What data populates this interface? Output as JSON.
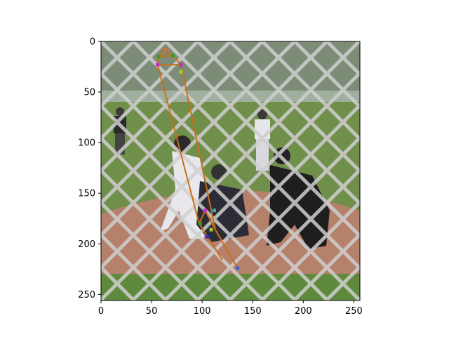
{
  "chart_data": {
    "type": "image",
    "title": "",
    "xlabel": "",
    "ylabel": "",
    "xlim": [
      0,
      256
    ],
    "ylim": [
      256,
      0
    ],
    "x_ticks": [
      0,
      50,
      100,
      150,
      200,
      250
    ],
    "y_ticks": [
      0,
      50,
      100,
      150,
      200,
      250
    ],
    "grid": false,
    "image_content": "baseball batter, catcher and umpire at home plate behind chain-link fence",
    "colors": {
      "skeleton": "#cc6f14",
      "field_grass": "#6f8f4a",
      "infield_dirt": "#b5816a",
      "fence": "#c9c9c9"
    },
    "keypoints": [
      {
        "x": 63,
        "y": 8,
        "color": "#e07020"
      },
      {
        "x": 57,
        "y": 15,
        "color": "#2e9e2e"
      },
      {
        "x": 71,
        "y": 14,
        "color": "#2e9e2e"
      },
      {
        "x": 56,
        "y": 23,
        "color": "#c030c0"
      },
      {
        "x": 79,
        "y": 23,
        "color": "#c030c0"
      },
      {
        "x": 79,
        "y": 30,
        "color": "#9acd32"
      },
      {
        "x": 103,
        "y": 167,
        "color": "#c030c0"
      },
      {
        "x": 112,
        "y": 167,
        "color": "#30b0b0"
      },
      {
        "x": 98,
        "y": 180,
        "color": "#2e9e2e"
      },
      {
        "x": 109,
        "y": 186,
        "color": "#9acd32"
      },
      {
        "x": 105,
        "y": 193,
        "color": "#3030c0"
      },
      {
        "x": 135,
        "y": 224,
        "color": "#4060d0"
      }
    ],
    "skeleton_lines": [
      {
        "x": [
          63,
          57,
          56,
          79,
          71,
          63
        ]
      },
      {
        "x": [
          57,
          71
        ]
      },
      {
        "x": [
          56,
          97
        ]
      },
      {
        "x": [
          79,
          113
        ]
      },
      {
        "x": [
          97,
          103,
          113
        ]
      },
      {
        "x": [
          97,
          120
        ]
      },
      {
        "x": [
          113,
          135
        ]
      }
    ]
  }
}
